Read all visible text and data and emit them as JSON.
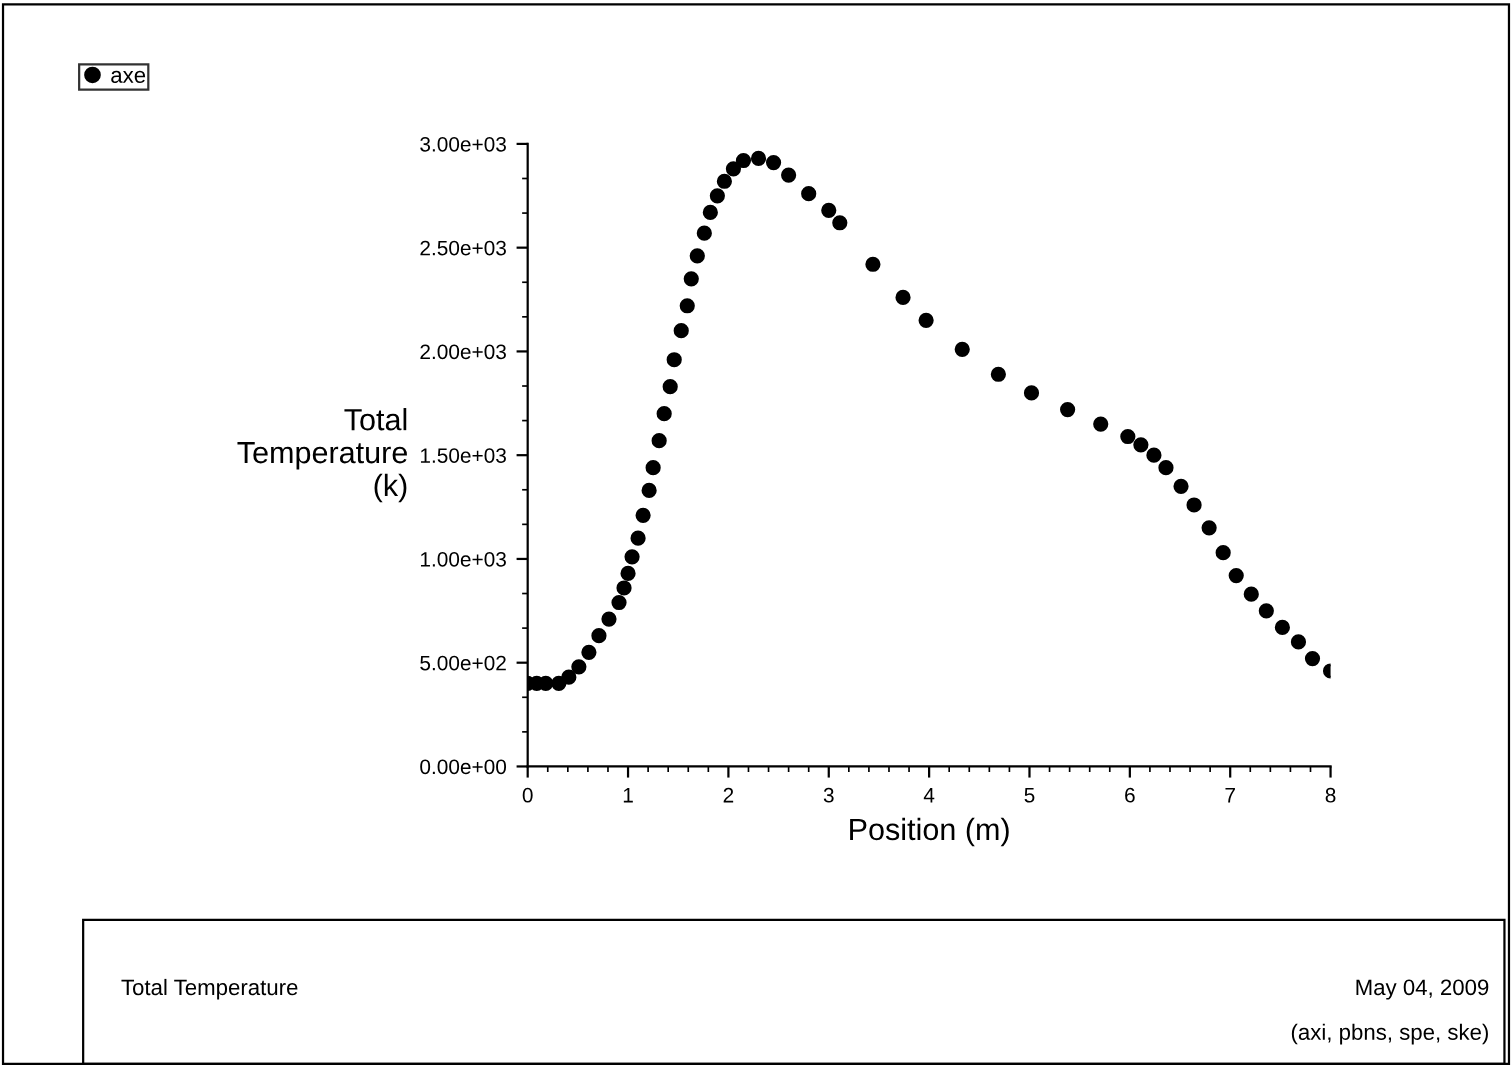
{
  "chart_data": {
    "type": "scatter",
    "xlabel": "Position (m)",
    "ylabel": "Total\nTemperature\n(k)",
    "xlim": [
      0,
      8
    ],
    "xticks": [
      0,
      1,
      2,
      3,
      4,
      5,
      6,
      7,
      8
    ],
    "ylim": [
      0,
      3000
    ],
    "yticks": [
      {
        "value": 0,
        "label": "0.00e+00"
      },
      {
        "value": 500,
        "label": "5.00e+02"
      },
      {
        "value": 1000,
        "label": "1.00e+03"
      },
      {
        "value": 1500,
        "label": "1.50e+03"
      },
      {
        "value": 2000,
        "label": "2.00e+03"
      },
      {
        "value": 2500,
        "label": "2.50e+03"
      },
      {
        "value": 3000,
        "label": "3.00e+03"
      }
    ],
    "grid": false,
    "legend": "top left",
    "marker": "circle",
    "series": [
      {
        "name": "axe",
        "color": "#000000",
        "x": [
          0,
          0.09,
          0.18,
          0.31,
          0.41,
          0.51,
          0.61,
          0.71,
          0.81,
          0.91,
          0.96,
          1.0,
          1.04,
          1.1,
          1.15,
          1.21,
          1.25,
          1.31,
          1.36,
          1.42,
          1.46,
          1.53,
          1.59,
          1.63,
          1.69,
          1.76,
          1.82,
          1.89,
          1.96,
          2.05,
          2.15,
          2.3,
          2.45,
          2.6,
          2.8,
          3.0,
          3.11,
          3.44,
          3.74,
          3.97,
          4.33,
          4.69,
          5.02,
          5.38,
          5.71,
          5.98,
          6.11,
          6.24,
          6.36,
          6.51,
          6.64,
          6.79,
          6.93,
          7.06,
          7.21,
          7.36,
          7.52,
          7.68,
          7.82,
          8.0
        ],
        "values": [
          400,
          400,
          400,
          400,
          430,
          480,
          550,
          630,
          710,
          790,
          860,
          930,
          1010,
          1100,
          1210,
          1330,
          1440,
          1570,
          1700,
          1830,
          1960,
          2100,
          2220,
          2350,
          2460,
          2570,
          2670,
          2750,
          2820,
          2880,
          2920,
          2930,
          2910,
          2850,
          2760,
          2680,
          2620,
          2420,
          2260,
          2150,
          2010,
          1890,
          1800,
          1720,
          1650,
          1590,
          1550,
          1500,
          1440,
          1350,
          1260,
          1150,
          1030,
          920,
          830,
          750,
          670,
          600,
          520,
          460
        ]
      }
    ],
    "annotations": [
      "Total Temperature",
      "May 04, 2009",
      "(axi, pbns, spe, ske)"
    ]
  }
}
